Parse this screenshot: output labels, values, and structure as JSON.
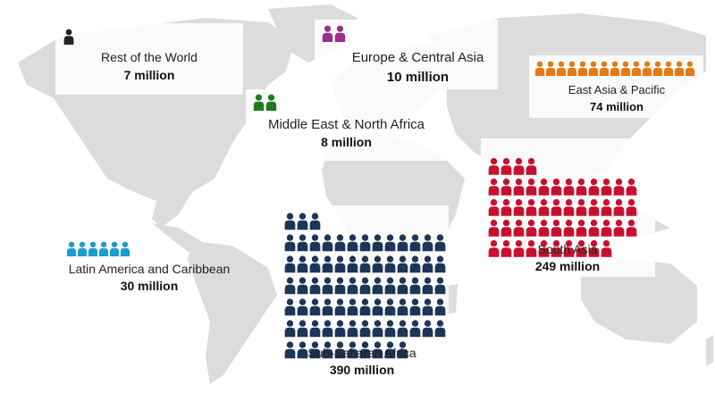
{
  "chart_data": {
    "type": "pictogram",
    "unit_note": "",
    "regions": [
      {
        "name": "Rest of the World",
        "value_label": "7 million",
        "value": 7,
        "icons": 1,
        "color": "#222222"
      },
      {
        "name": "Europe & Central Asia",
        "value_label": "10 million",
        "value": 10,
        "icons": 2,
        "color": "#9b2f8e"
      },
      {
        "name": "East Asia & Pacific",
        "value_label": "74 million",
        "value": 74,
        "icons": 15,
        "color": "#e57a10"
      },
      {
        "name": "Middle East & North Africa",
        "value_label": "8 million",
        "value": 8,
        "icons": 2,
        "color": "#1f7a1f"
      },
      {
        "name": "Latin America and Caribbean",
        "value_label": "30 million",
        "value": 30,
        "icons": 6,
        "color": "#1a9bd1"
      },
      {
        "name": "Sub-Saharan Africa",
        "value_label": "390 million",
        "value": 390,
        "icons": 78,
        "color": "#1d3557"
      },
      {
        "name": "South Asia",
        "value_label": "249 million",
        "value": 249,
        "icons": 50,
        "color": "#c8102e"
      }
    ]
  },
  "map": {
    "land_color": "#d9d9d9",
    "background": "#ffffff"
  }
}
